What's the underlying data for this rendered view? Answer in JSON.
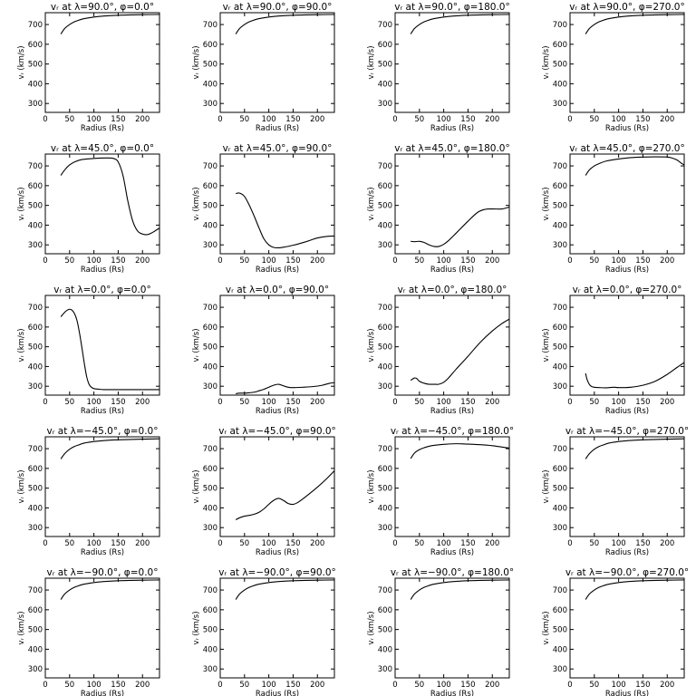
{
  "chart_data": [
    {
      "type": "line",
      "title": "vᵣ at λ=90.0°, φ=0.0°",
      "xlabel": "Radius (Rs)",
      "ylabel": "vᵣ (km/s)",
      "xlim": [
        0,
        235
      ],
      "ylim": [
        255,
        760
      ],
      "xticks": [
        0,
        50,
        100,
        150,
        200
      ],
      "yticks": [
        300,
        400,
        500,
        600,
        700
      ],
      "x": [
        32,
        40,
        50,
        60,
        70,
        80,
        100,
        120,
        150,
        200,
        235
      ],
      "values": [
        652,
        680,
        700,
        714,
        723,
        730,
        738,
        743,
        747,
        750,
        751
      ]
    },
    {
      "type": "line",
      "title": "vᵣ at λ=90.0°, φ=90.0°",
      "xlabel": "Radius (Rs)",
      "ylabel": "vᵣ (km/s)",
      "xlim": [
        0,
        235
      ],
      "ylim": [
        255,
        760
      ],
      "xticks": [
        0,
        50,
        100,
        150,
        200
      ],
      "yticks": [
        300,
        400,
        500,
        600,
        700
      ],
      "x": [
        32,
        40,
        50,
        60,
        70,
        80,
        100,
        120,
        150,
        200,
        235
      ],
      "values": [
        652,
        680,
        700,
        714,
        723,
        730,
        738,
        743,
        747,
        750,
        751
      ]
    },
    {
      "type": "line",
      "title": "vᵣ at λ=90.0°, φ=180.0°",
      "xlabel": "Radius (Rs)",
      "ylabel": "vᵣ (km/s)",
      "xlim": [
        0,
        235
      ],
      "ylim": [
        255,
        760
      ],
      "xticks": [
        0,
        50,
        100,
        150,
        200
      ],
      "yticks": [
        300,
        400,
        500,
        600,
        700
      ],
      "x": [
        32,
        40,
        50,
        60,
        70,
        80,
        100,
        120,
        150,
        200,
        235
      ],
      "values": [
        652,
        680,
        700,
        714,
        723,
        730,
        738,
        743,
        747,
        750,
        751
      ]
    },
    {
      "type": "line",
      "title": "vᵣ at λ=90.0°, φ=270.0°",
      "xlabel": "Radius (Rs)",
      "ylabel": "vᵣ (km/s)",
      "xlim": [
        0,
        235
      ],
      "ylim": [
        255,
        760
      ],
      "xticks": [
        0,
        50,
        100,
        150,
        200
      ],
      "yticks": [
        300,
        400,
        500,
        600,
        700
      ],
      "x": [
        32,
        40,
        50,
        60,
        70,
        80,
        100,
        120,
        150,
        200,
        235
      ],
      "values": [
        652,
        680,
        700,
        714,
        723,
        730,
        738,
        743,
        747,
        750,
        751
      ]
    },
    {
      "type": "line",
      "title": "vᵣ at λ=45.0°, φ=0.0°",
      "xlabel": "Radius (Rs)",
      "ylabel": "vᵣ (km/s)",
      "xlim": [
        0,
        235
      ],
      "ylim": [
        255,
        760
      ],
      "xticks": [
        0,
        50,
        100,
        150,
        200
      ],
      "yticks": [
        300,
        400,
        500,
        600,
        700
      ],
      "x": [
        32,
        40,
        50,
        60,
        75,
        100,
        125,
        140,
        150,
        160,
        170,
        180,
        190,
        200,
        210,
        220,
        235
      ],
      "values": [
        652,
        680,
        705,
        720,
        732,
        738,
        740,
        738,
        720,
        650,
        520,
        420,
        370,
        355,
        352,
        362,
        385
      ]
    },
    {
      "type": "line",
      "title": "vᵣ at λ=45.0°, φ=90.0°",
      "xlabel": "Radius (Rs)",
      "ylabel": "vᵣ (km/s)",
      "xlim": [
        0,
        235
      ],
      "ylim": [
        255,
        760
      ],
      "xticks": [
        0,
        50,
        100,
        150,
        200
      ],
      "yticks": [
        300,
        400,
        500,
        600,
        700
      ],
      "x": [
        32,
        40,
        50,
        60,
        70,
        80,
        90,
        100,
        110,
        120,
        130,
        150,
        175,
        200,
        220,
        235
      ],
      "values": [
        560,
        562,
        545,
        500,
        445,
        385,
        330,
        300,
        287,
        285,
        288,
        298,
        315,
        335,
        343,
        345
      ]
    },
    {
      "type": "line",
      "title": "vᵣ at λ=45.0°, φ=180.0°",
      "xlabel": "Radius (Rs)",
      "ylabel": "vᵣ (km/s)",
      "xlim": [
        0,
        235
      ],
      "ylim": [
        255,
        760
      ],
      "xticks": [
        0,
        50,
        100,
        150,
        200
      ],
      "yticks": [
        300,
        400,
        500,
        600,
        700
      ],
      "x": [
        32,
        40,
        50,
        60,
        70,
        80,
        90,
        100,
        110,
        125,
        150,
        170,
        185,
        200,
        220,
        235
      ],
      "values": [
        318,
        316,
        318,
        312,
        300,
        292,
        292,
        303,
        322,
        358,
        420,
        465,
        480,
        482,
        482,
        492
      ]
    },
    {
      "type": "line",
      "title": "vᵣ at λ=45.0°, φ=270.0°",
      "xlabel": "Radius (Rs)",
      "ylabel": "vᵣ (km/s)",
      "xlim": [
        0,
        235
      ],
      "ylim": [
        255,
        760
      ],
      "xticks": [
        0,
        50,
        100,
        150,
        200
      ],
      "yticks": [
        300,
        400,
        500,
        600,
        700
      ],
      "x": [
        32,
        40,
        50,
        60,
        75,
        100,
        125,
        150,
        175,
        200,
        210,
        220,
        230,
        235
      ],
      "values": [
        652,
        680,
        700,
        712,
        725,
        735,
        742,
        745,
        746,
        745,
        740,
        730,
        712,
        705
      ]
    },
    {
      "type": "line",
      "title": "vᵣ at λ=0.0°, φ=0.0°",
      "xlabel": "Radius (Rs)",
      "ylabel": "vᵣ (km/s)",
      "xlim": [
        0,
        235
      ],
      "ylim": [
        255,
        760
      ],
      "xticks": [
        0,
        50,
        100,
        150,
        200
      ],
      "yticks": [
        300,
        400,
        500,
        600,
        700
      ],
      "x": [
        32,
        40,
        45,
        50,
        55,
        60,
        65,
        70,
        75,
        80,
        85,
        90,
        95,
        100,
        110,
        120,
        150,
        200,
        235
      ],
      "values": [
        652,
        675,
        685,
        690,
        685,
        668,
        635,
        575,
        500,
        420,
        350,
        310,
        295,
        288,
        285,
        283,
        283,
        283,
        283
      ]
    },
    {
      "type": "line",
      "title": "vᵣ at λ=0.0°, φ=90.0°",
      "xlabel": "Radius (Rs)",
      "ylabel": "vᵣ (km/s)",
      "xlim": [
        0,
        235
      ],
      "ylim": [
        255,
        760
      ],
      "xticks": [
        0,
        50,
        100,
        150,
        200
      ],
      "yticks": [
        300,
        400,
        500,
        600,
        700
      ],
      "x": [
        32,
        40,
        50,
        60,
        70,
        80,
        90,
        100,
        110,
        120,
        130,
        140,
        150,
        170,
        190,
        210,
        225,
        235
      ],
      "values": [
        262,
        265,
        265,
        267,
        270,
        277,
        285,
        295,
        305,
        310,
        302,
        295,
        293,
        295,
        298,
        305,
        315,
        318
      ]
    },
    {
      "type": "line",
      "title": "vᵣ at λ=0.0°, φ=180.0°",
      "xlabel": "Radius (Rs)",
      "ylabel": "vᵣ (km/s)",
      "xlim": [
        0,
        235
      ],
      "ylim": [
        255,
        760
      ],
      "xticks": [
        0,
        50,
        100,
        150,
        200
      ],
      "yticks": [
        300,
        400,
        500,
        600,
        700
      ],
      "x": [
        32,
        40,
        45,
        50,
        60,
        70,
        80,
        90,
        100,
        110,
        125,
        150,
        175,
        200,
        220,
        235
      ],
      "values": [
        330,
        342,
        338,
        325,
        315,
        310,
        310,
        310,
        320,
        342,
        385,
        452,
        522,
        580,
        618,
        640
      ]
    },
    {
      "type": "line",
      "title": "vᵣ at λ=0.0°, φ=270.0°",
      "xlabel": "Radius (Rs)",
      "ylabel": "vᵣ (km/s)",
      "xlim": [
        0,
        235
      ],
      "ylim": [
        255,
        760
      ],
      "xticks": [
        0,
        50,
        100,
        150,
        200
      ],
      "yticks": [
        300,
        400,
        500,
        600,
        700
      ],
      "x": [
        32,
        35,
        40,
        45,
        50,
        60,
        75,
        90,
        100,
        125,
        150,
        175,
        200,
        220,
        235
      ],
      "values": [
        365,
        335,
        308,
        298,
        295,
        293,
        292,
        295,
        293,
        295,
        305,
        325,
        360,
        395,
        420
      ]
    },
    {
      "type": "line",
      "title": "vᵣ at λ=−45.0°, φ=0.0°",
      "xlabel": "Radius (Rs)",
      "ylabel": "vᵣ (km/s)",
      "xlim": [
        0,
        235
      ],
      "ylim": [
        255,
        760
      ],
      "xticks": [
        0,
        50,
        100,
        150,
        200
      ],
      "yticks": [
        300,
        400,
        500,
        600,
        700
      ],
      "x": [
        32,
        40,
        50,
        60,
        70,
        80,
        100,
        120,
        150,
        200,
        235
      ],
      "values": [
        648,
        675,
        697,
        711,
        720,
        728,
        736,
        741,
        745,
        748,
        750
      ]
    },
    {
      "type": "line",
      "title": "vᵣ at λ=−45.0°, φ=90.0°",
      "xlabel": "Radius (Rs)",
      "ylabel": "vᵣ (km/s)",
      "xlim": [
        0,
        235
      ],
      "ylim": [
        255,
        760
      ],
      "xticks": [
        0,
        50,
        100,
        150,
        200
      ],
      "yticks": [
        300,
        400,
        500,
        600,
        700
      ],
      "x": [
        32,
        40,
        50,
        60,
        70,
        80,
        90,
        100,
        110,
        120,
        130,
        140,
        150,
        160,
        175,
        200,
        220,
        235
      ],
      "values": [
        340,
        350,
        358,
        362,
        368,
        378,
        395,
        418,
        438,
        448,
        438,
        422,
        418,
        428,
        455,
        505,
        550,
        588
      ]
    },
    {
      "type": "line",
      "title": "vᵣ at λ=−45.0°, φ=180.0°",
      "xlabel": "Radius (Rs)",
      "ylabel": "vᵣ (km/s)",
      "xlim": [
        0,
        235
      ],
      "ylim": [
        255,
        760
      ],
      "xticks": [
        0,
        50,
        100,
        150,
        200
      ],
      "yticks": [
        300,
        400,
        500,
        600,
        700
      ],
      "x": [
        32,
        40,
        50,
        60,
        75,
        100,
        125,
        150,
        175,
        200,
        220,
        235
      ],
      "values": [
        650,
        678,
        695,
        705,
        715,
        722,
        725,
        723,
        720,
        715,
        708,
        703
      ]
    },
    {
      "type": "line",
      "title": "vᵣ at λ=−45.0°, φ=270.0°",
      "xlabel": "Radius (Rs)",
      "ylabel": "vᵣ (km/s)",
      "xlim": [
        0,
        235
      ],
      "ylim": [
        255,
        760
      ],
      "xticks": [
        0,
        50,
        100,
        150,
        200
      ],
      "yticks": [
        300,
        400,
        500,
        600,
        700
      ],
      "x": [
        32,
        40,
        50,
        60,
        70,
        80,
        100,
        120,
        150,
        200,
        235
      ],
      "values": [
        648,
        675,
        697,
        711,
        720,
        728,
        736,
        741,
        745,
        748,
        750
      ]
    },
    {
      "type": "line",
      "title": "vᵣ at λ=−90.0°, φ=0.0°",
      "xlabel": "Radius (Rs)",
      "ylabel": "vᵣ (km/s)",
      "xlim": [
        0,
        235
      ],
      "ylim": [
        255,
        760
      ],
      "xticks": [
        0,
        50,
        100,
        150,
        200
      ],
      "yticks": [
        300,
        400,
        500,
        600,
        700
      ],
      "x": [
        32,
        40,
        50,
        60,
        70,
        80,
        100,
        120,
        150,
        200,
        235
      ],
      "values": [
        652,
        680,
        700,
        714,
        723,
        730,
        738,
        743,
        747,
        750,
        751
      ]
    },
    {
      "type": "line",
      "title": "vᵣ at λ=−90.0°, φ=90.0°",
      "xlabel": "Radius (Rs)",
      "ylabel": "vᵣ (km/s)",
      "xlim": [
        0,
        235
      ],
      "ylim": [
        255,
        760
      ],
      "xticks": [
        0,
        50,
        100,
        150,
        200
      ],
      "yticks": [
        300,
        400,
        500,
        600,
        700
      ],
      "x": [
        32,
        40,
        50,
        60,
        70,
        80,
        100,
        120,
        150,
        200,
        235
      ],
      "values": [
        652,
        680,
        700,
        714,
        723,
        730,
        738,
        743,
        747,
        750,
        751
      ]
    },
    {
      "type": "line",
      "title": "vᵣ at λ=−90.0°, φ=180.0°",
      "xlabel": "Radius (Rs)",
      "ylabel": "vᵣ (km/s)",
      "xlim": [
        0,
        235
      ],
      "ylim": [
        255,
        760
      ],
      "xticks": [
        0,
        50,
        100,
        150,
        200
      ],
      "yticks": [
        300,
        400,
        500,
        600,
        700
      ],
      "x": [
        32,
        40,
        50,
        60,
        70,
        80,
        100,
        120,
        150,
        200,
        235
      ],
      "values": [
        652,
        680,
        700,
        714,
        723,
        730,
        738,
        743,
        747,
        750,
        751
      ]
    },
    {
      "type": "line",
      "title": "vᵣ at λ=−90.0°, φ=270.0°",
      "xlabel": "Radius (Rs)",
      "ylabel": "vᵣ (km/s)",
      "xlim": [
        0,
        235
      ],
      "ylim": [
        255,
        760
      ],
      "xticks": [
        0,
        50,
        100,
        150,
        200
      ],
      "yticks": [
        300,
        400,
        500,
        600,
        700
      ],
      "x": [
        32,
        40,
        50,
        60,
        70,
        80,
        100,
        120,
        150,
        200,
        235
      ],
      "values": [
        652,
        680,
        700,
        714,
        723,
        730,
        738,
        743,
        747,
        750,
        751
      ]
    }
  ]
}
